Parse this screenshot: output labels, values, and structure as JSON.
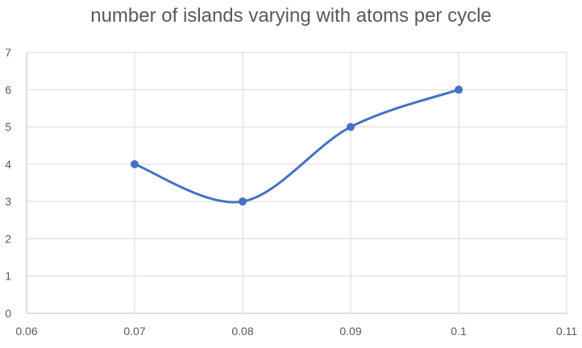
{
  "chart_data": {
    "type": "scatter",
    "title": "number of islands varying with atoms per cycle",
    "xlabel": "",
    "ylabel": "",
    "xlim": [
      0.06,
      0.11
    ],
    "ylim": [
      0,
      7
    ],
    "xticks": [
      "0.06",
      "0.07",
      "0.08",
      "0.09",
      "0.1",
      "0.11"
    ],
    "yticks": [
      "0",
      "1",
      "2",
      "3",
      "4",
      "5",
      "6",
      "7"
    ],
    "grid": true,
    "smooth": true,
    "series": [
      {
        "x": [
          0.07,
          0.08,
          0.09,
          0.1
        ],
        "y": [
          4,
          3,
          5,
          6
        ]
      }
    ],
    "colors": {
      "series": "#4472C4",
      "grid": "#D9D9D9",
      "axis": "#BFBFBF",
      "text": "#595959"
    }
  }
}
